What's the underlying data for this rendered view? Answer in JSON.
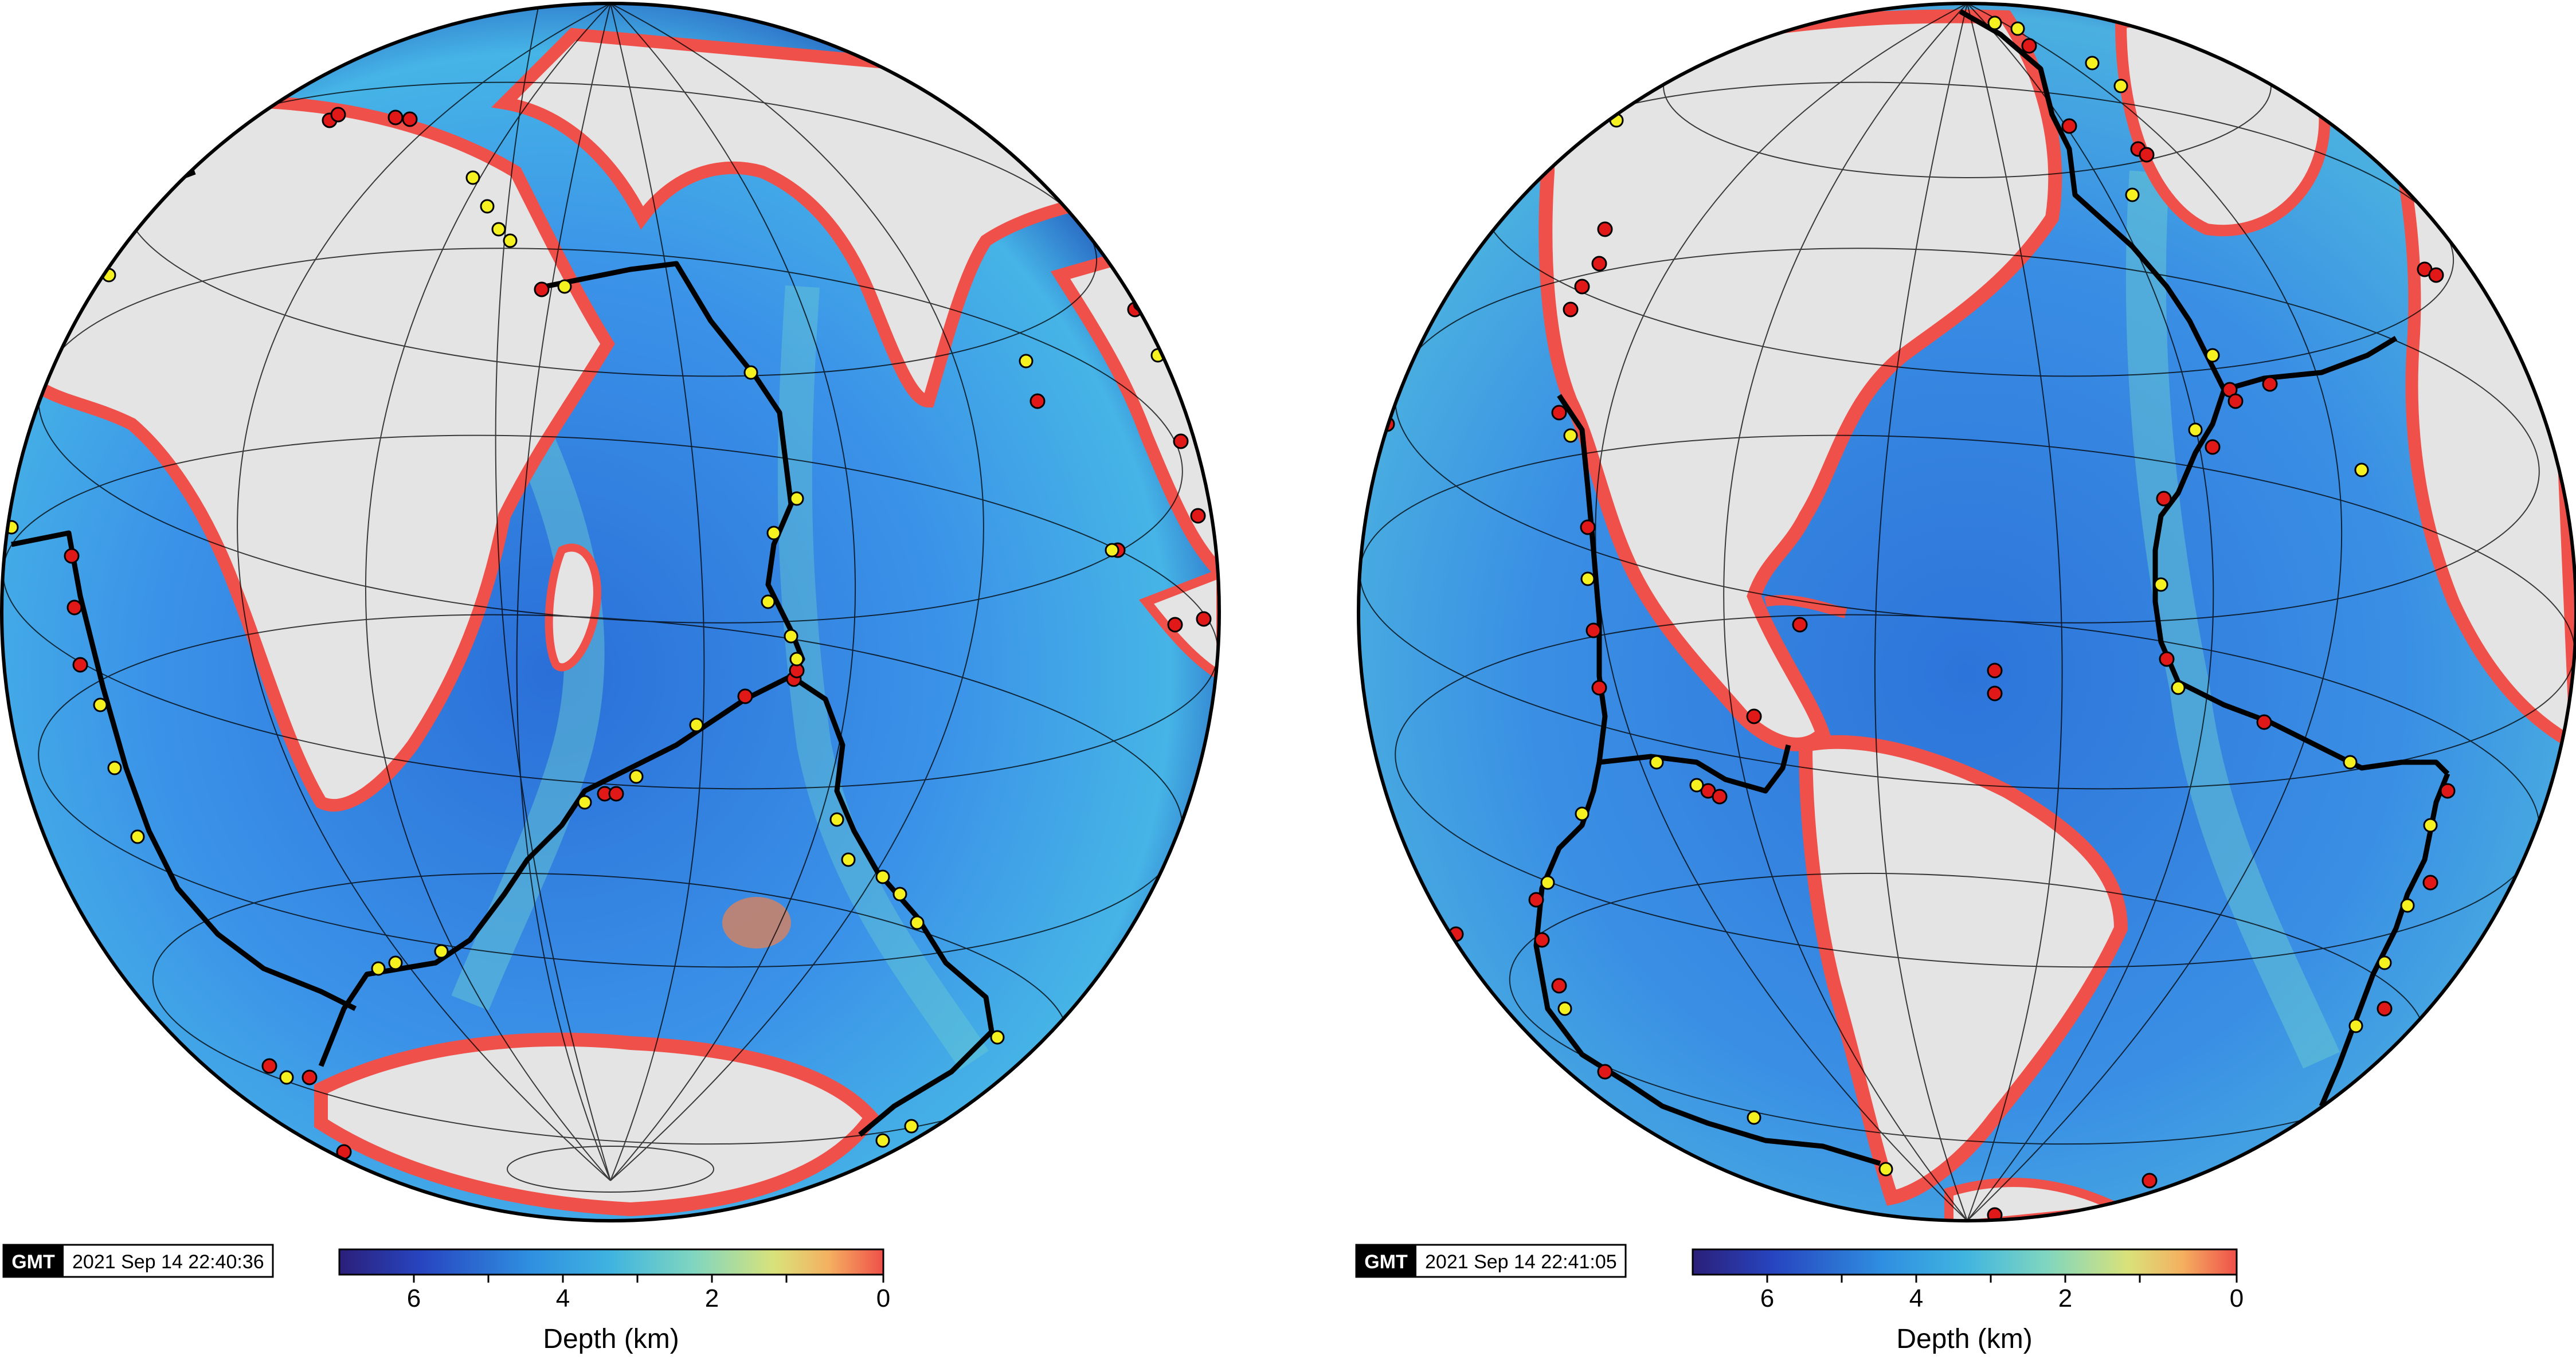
{
  "panels": [
    {
      "id": "indian-ocean",
      "timestamp": "2021 Sep 14 22:40:36",
      "logo": "GMT",
      "colorbar": {
        "label": "Depth (km)",
        "ticks": [
          "6",
          "4",
          "2",
          "0"
        ]
      }
    },
    {
      "id": "atlantic-ocean",
      "timestamp": "2021 Sep 14 22:41:05",
      "logo": "GMT",
      "colorbar": {
        "label": "Depth (km)",
        "ticks": [
          "6",
          "4",
          "2",
          "0"
        ]
      }
    }
  ],
  "legend_colors": {
    "deep": "#2b1f7a",
    "mid": "#2f8fe0",
    "shallow": "#7fd6c0",
    "shelf": "#f2e07a",
    "coast": "#f0504a",
    "land": "#e4e4e4",
    "ridge": "#000000",
    "event_red": "#e01818",
    "event_yellow": "#f5f020"
  }
}
